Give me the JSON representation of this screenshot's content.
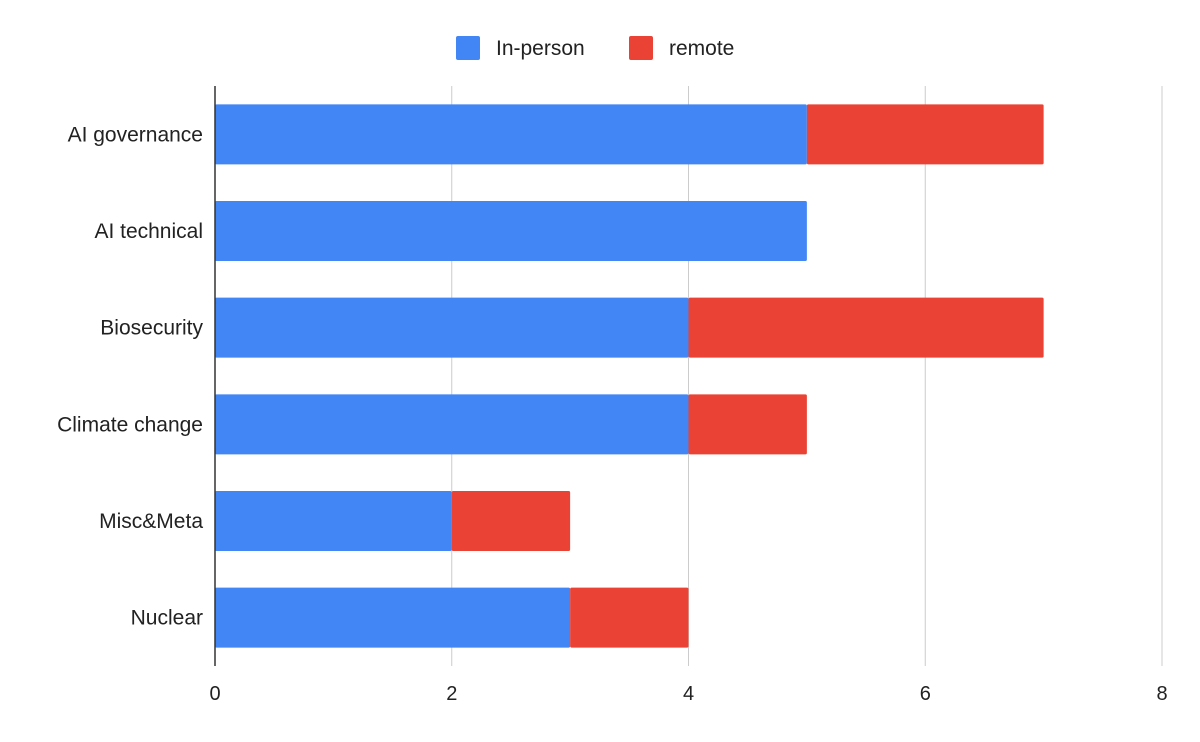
{
  "chart_data": {
    "type": "bar",
    "orientation": "horizontal",
    "stacked": true,
    "title": "",
    "xlabel": "",
    "ylabel": "",
    "categories": [
      "AI governance",
      "AI technical",
      "Biosecurity",
      "Climate change",
      "Misc&Meta",
      "Nuclear"
    ],
    "series": [
      {
        "name": "In-person",
        "color": "#4285f4",
        "values": [
          5,
          5,
          4,
          4,
          2,
          3
        ]
      },
      {
        "name": "remote",
        "color": "#ea4335",
        "values": [
          2,
          0,
          3,
          1,
          1,
          1
        ]
      }
    ],
    "xlim": [
      0,
      8
    ],
    "xticks": [
      0,
      2,
      4,
      6,
      8
    ],
    "grid": true,
    "legend_position": "top-center"
  }
}
